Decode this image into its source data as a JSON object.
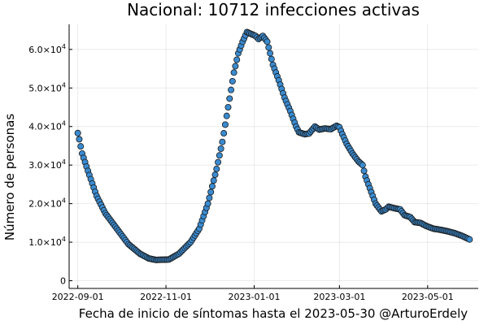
{
  "chart_data": {
    "type": "scatter",
    "title": "Nacional:  10712 infecciones activas",
    "xlabel": "Fecha de inicio de síntomas hasta el 2023-05-30 @ArturoErdely",
    "ylabel": "Número de personas",
    "x_range": [
      "2022-09-01",
      "2023-05-30"
    ],
    "xlim": [
      "2022-08-26",
      "2023-06-05"
    ],
    "ylim": [
      -2000,
      66500
    ],
    "x_ticks": [
      "2022-09-01",
      "2022-11-01",
      "2023-01-01",
      "2023-03-01",
      "2023-05-01"
    ],
    "y_ticks": [
      {
        "value": 0,
        "label": "0"
      },
      {
        "value": 10000,
        "label": "1.0×10",
        "exp": "4"
      },
      {
        "value": 20000,
        "label": "2.0×10",
        "exp": "4"
      },
      {
        "value": 30000,
        "label": "3.0×10",
        "exp": "4"
      },
      {
        "value": 40000,
        "label": "4.0×10",
        "exp": "4"
      },
      {
        "value": 50000,
        "label": "5.0×10",
        "exp": "4"
      },
      {
        "value": 60000,
        "label": "6.0×10",
        "exp": "4"
      }
    ],
    "grid": true,
    "legend": "none",
    "marker_color": "#3a8bd0",
    "series": [
      {
        "start_date": "2022-09-01",
        "keypoints": [
          [
            "2022-09-01",
            38300
          ],
          [
            "2022-09-02",
            36700
          ],
          [
            "2022-09-04",
            33000
          ],
          [
            "2022-09-08",
            28500
          ],
          [
            "2022-09-14",
            22000
          ],
          [
            "2022-09-20",
            17500
          ],
          [
            "2022-09-28",
            13500
          ],
          [
            "2022-10-06",
            9500
          ],
          [
            "2022-10-14",
            7000
          ],
          [
            "2022-10-20",
            5800
          ],
          [
            "2022-10-25",
            5400
          ],
          [
            "2022-11-03",
            5500
          ],
          [
            "2022-11-10",
            7000
          ],
          [
            "2022-11-18",
            10000
          ],
          [
            "2022-11-24",
            13500
          ],
          [
            "2022-11-30",
            20000
          ],
          [
            "2022-12-06",
            29000
          ],
          [
            "2022-12-10",
            36000
          ],
          [
            "2022-12-14",
            45000
          ],
          [
            "2022-12-18",
            54000
          ],
          [
            "2022-12-21",
            59000
          ],
          [
            "2022-12-24",
            62000
          ],
          [
            "2022-12-27",
            64500
          ],
          [
            "2022-12-30",
            64000
          ],
          [
            "2023-01-02",
            63500
          ],
          [
            "2023-01-04",
            62700
          ],
          [
            "2023-01-07",
            63500
          ],
          [
            "2023-01-10",
            62000
          ],
          [
            "2023-01-14",
            56000
          ],
          [
            "2023-01-18",
            52000
          ],
          [
            "2023-01-22",
            47500
          ],
          [
            "2023-01-26",
            44000
          ],
          [
            "2023-01-30",
            40000
          ],
          [
            "2023-02-01",
            38500
          ],
          [
            "2023-02-05",
            38000
          ],
          [
            "2023-02-08",
            38200
          ],
          [
            "2023-02-12",
            40000
          ],
          [
            "2023-02-15",
            39200
          ],
          [
            "2023-02-19",
            39500
          ],
          [
            "2023-02-23",
            39300
          ],
          [
            "2023-02-27",
            40200
          ],
          [
            "2023-03-01",
            39800
          ],
          [
            "2023-03-03",
            38000
          ],
          [
            "2023-03-06",
            35500
          ],
          [
            "2023-03-10",
            33000
          ],
          [
            "2023-03-14",
            31000
          ],
          [
            "2023-03-17",
            30000
          ],
          [
            "2023-03-19",
            27000
          ],
          [
            "2023-03-22",
            24000
          ],
          [
            "2023-03-26",
            20000
          ],
          [
            "2023-03-30",
            18000
          ],
          [
            "2023-04-02",
            18500
          ],
          [
            "2023-04-04",
            19200
          ],
          [
            "2023-04-08",
            18800
          ],
          [
            "2023-04-12",
            18500
          ],
          [
            "2023-04-15",
            17000
          ],
          [
            "2023-04-19",
            16500
          ],
          [
            "2023-04-22",
            15200
          ],
          [
            "2023-04-26",
            15000
          ],
          [
            "2023-04-30",
            14200
          ],
          [
            "2023-05-05",
            13500
          ],
          [
            "2023-05-10",
            13200
          ],
          [
            "2023-05-15",
            12800
          ],
          [
            "2023-05-20",
            12300
          ],
          [
            "2023-05-25",
            11600
          ],
          [
            "2023-05-30",
            10712
          ]
        ]
      }
    ]
  }
}
